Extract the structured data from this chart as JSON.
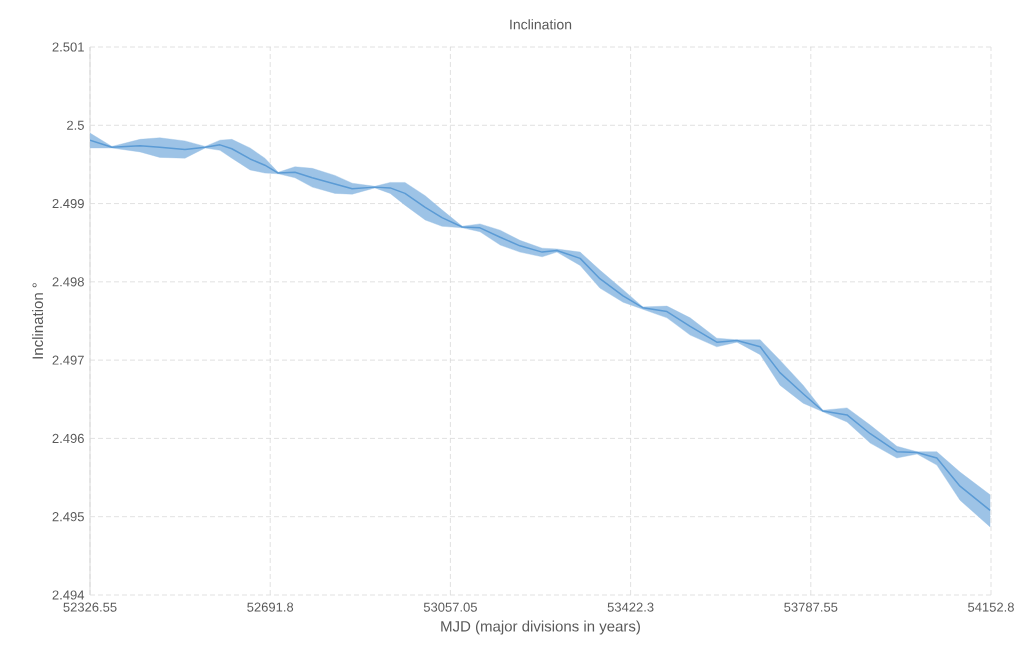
{
  "chart_data": {
    "type": "line",
    "title": "Inclination",
    "xlabel": "MJD (major divisions in years)",
    "ylabel": "Inclination °",
    "x": [
      52326.55,
      52371,
      52428,
      52468,
      52519,
      52560,
      52590,
      52614,
      52651,
      52681,
      52708,
      52742,
      52777,
      52823,
      52858,
      52904,
      52935,
      52965,
      53006,
      53040,
      53081,
      53117,
      53158,
      53198,
      53243,
      53273,
      53320,
      53360,
      53407,
      53447,
      53496,
      53543,
      53597,
      53638,
      53685,
      53725,
      53772,
      53812,
      53861,
      53908,
      53962,
      54003,
      54043,
      54090,
      54151
    ],
    "series": [
      {
        "color": "#5b9bd5",
        "values": [
          2.49981,
          2.49972,
          2.49974,
          2.49972,
          2.49969,
          2.49972,
          2.49975,
          2.4997,
          2.49957,
          2.49949,
          2.49939,
          2.4994,
          2.49933,
          2.49925,
          2.49919,
          2.49921,
          2.4992,
          2.49913,
          2.49895,
          2.49882,
          2.4987,
          2.49869,
          2.49857,
          2.49846,
          2.49838,
          2.4984,
          2.4983,
          2.49804,
          2.49782,
          2.49767,
          2.49762,
          2.49743,
          2.49723,
          2.49725,
          2.49717,
          2.49684,
          2.49657,
          2.49635,
          2.4963,
          2.49606,
          2.49583,
          2.49582,
          2.49575,
          2.49539,
          2.49508
        ],
        "lower": [
          2.49971,
          2.49971,
          2.49966,
          2.49959,
          2.49958,
          2.49971,
          2.49968,
          2.49958,
          2.49943,
          2.49939,
          2.49938,
          2.49933,
          2.49921,
          2.49913,
          2.49912,
          2.4992,
          2.49913,
          2.49898,
          2.49879,
          2.49871,
          2.49869,
          2.49864,
          2.49847,
          2.49838,
          2.49832,
          2.49838,
          2.49821,
          2.49792,
          2.49774,
          2.49765,
          2.49754,
          2.49732,
          2.49717,
          2.49723,
          2.49707,
          2.49668,
          2.49645,
          2.49634,
          2.49621,
          2.49594,
          2.49575,
          2.4958,
          2.49566,
          2.49521,
          2.49487
        ],
        "upper": [
          2.4999,
          2.49973,
          2.49982,
          2.49984,
          2.4998,
          2.49973,
          2.49981,
          2.49982,
          2.49971,
          2.49958,
          2.4994,
          2.49947,
          2.49945,
          2.49936,
          2.49926,
          2.49922,
          2.49927,
          2.49927,
          2.4991,
          2.49892,
          2.49871,
          2.49874,
          2.49866,
          2.49853,
          2.49843,
          2.49842,
          2.49838,
          2.49815,
          2.4979,
          2.49768,
          2.49769,
          2.49754,
          2.49728,
          2.49726,
          2.49726,
          2.497,
          2.49668,
          2.49636,
          2.49639,
          2.49617,
          2.4959,
          2.49583,
          2.49583,
          2.49557,
          2.49528
        ]
      }
    ],
    "xlim": [
      52326.55,
      54152.8
    ],
    "xticks": [
      52326.55,
      52691.8,
      53057.05,
      53422.3,
      53787.55,
      54152.8
    ],
    "ylim": [
      2.494,
      2.501
    ],
    "yticks": [
      2.494,
      2.495,
      2.496,
      2.497,
      2.498,
      2.499,
      2.5,
      2.501
    ],
    "grid": true
  }
}
